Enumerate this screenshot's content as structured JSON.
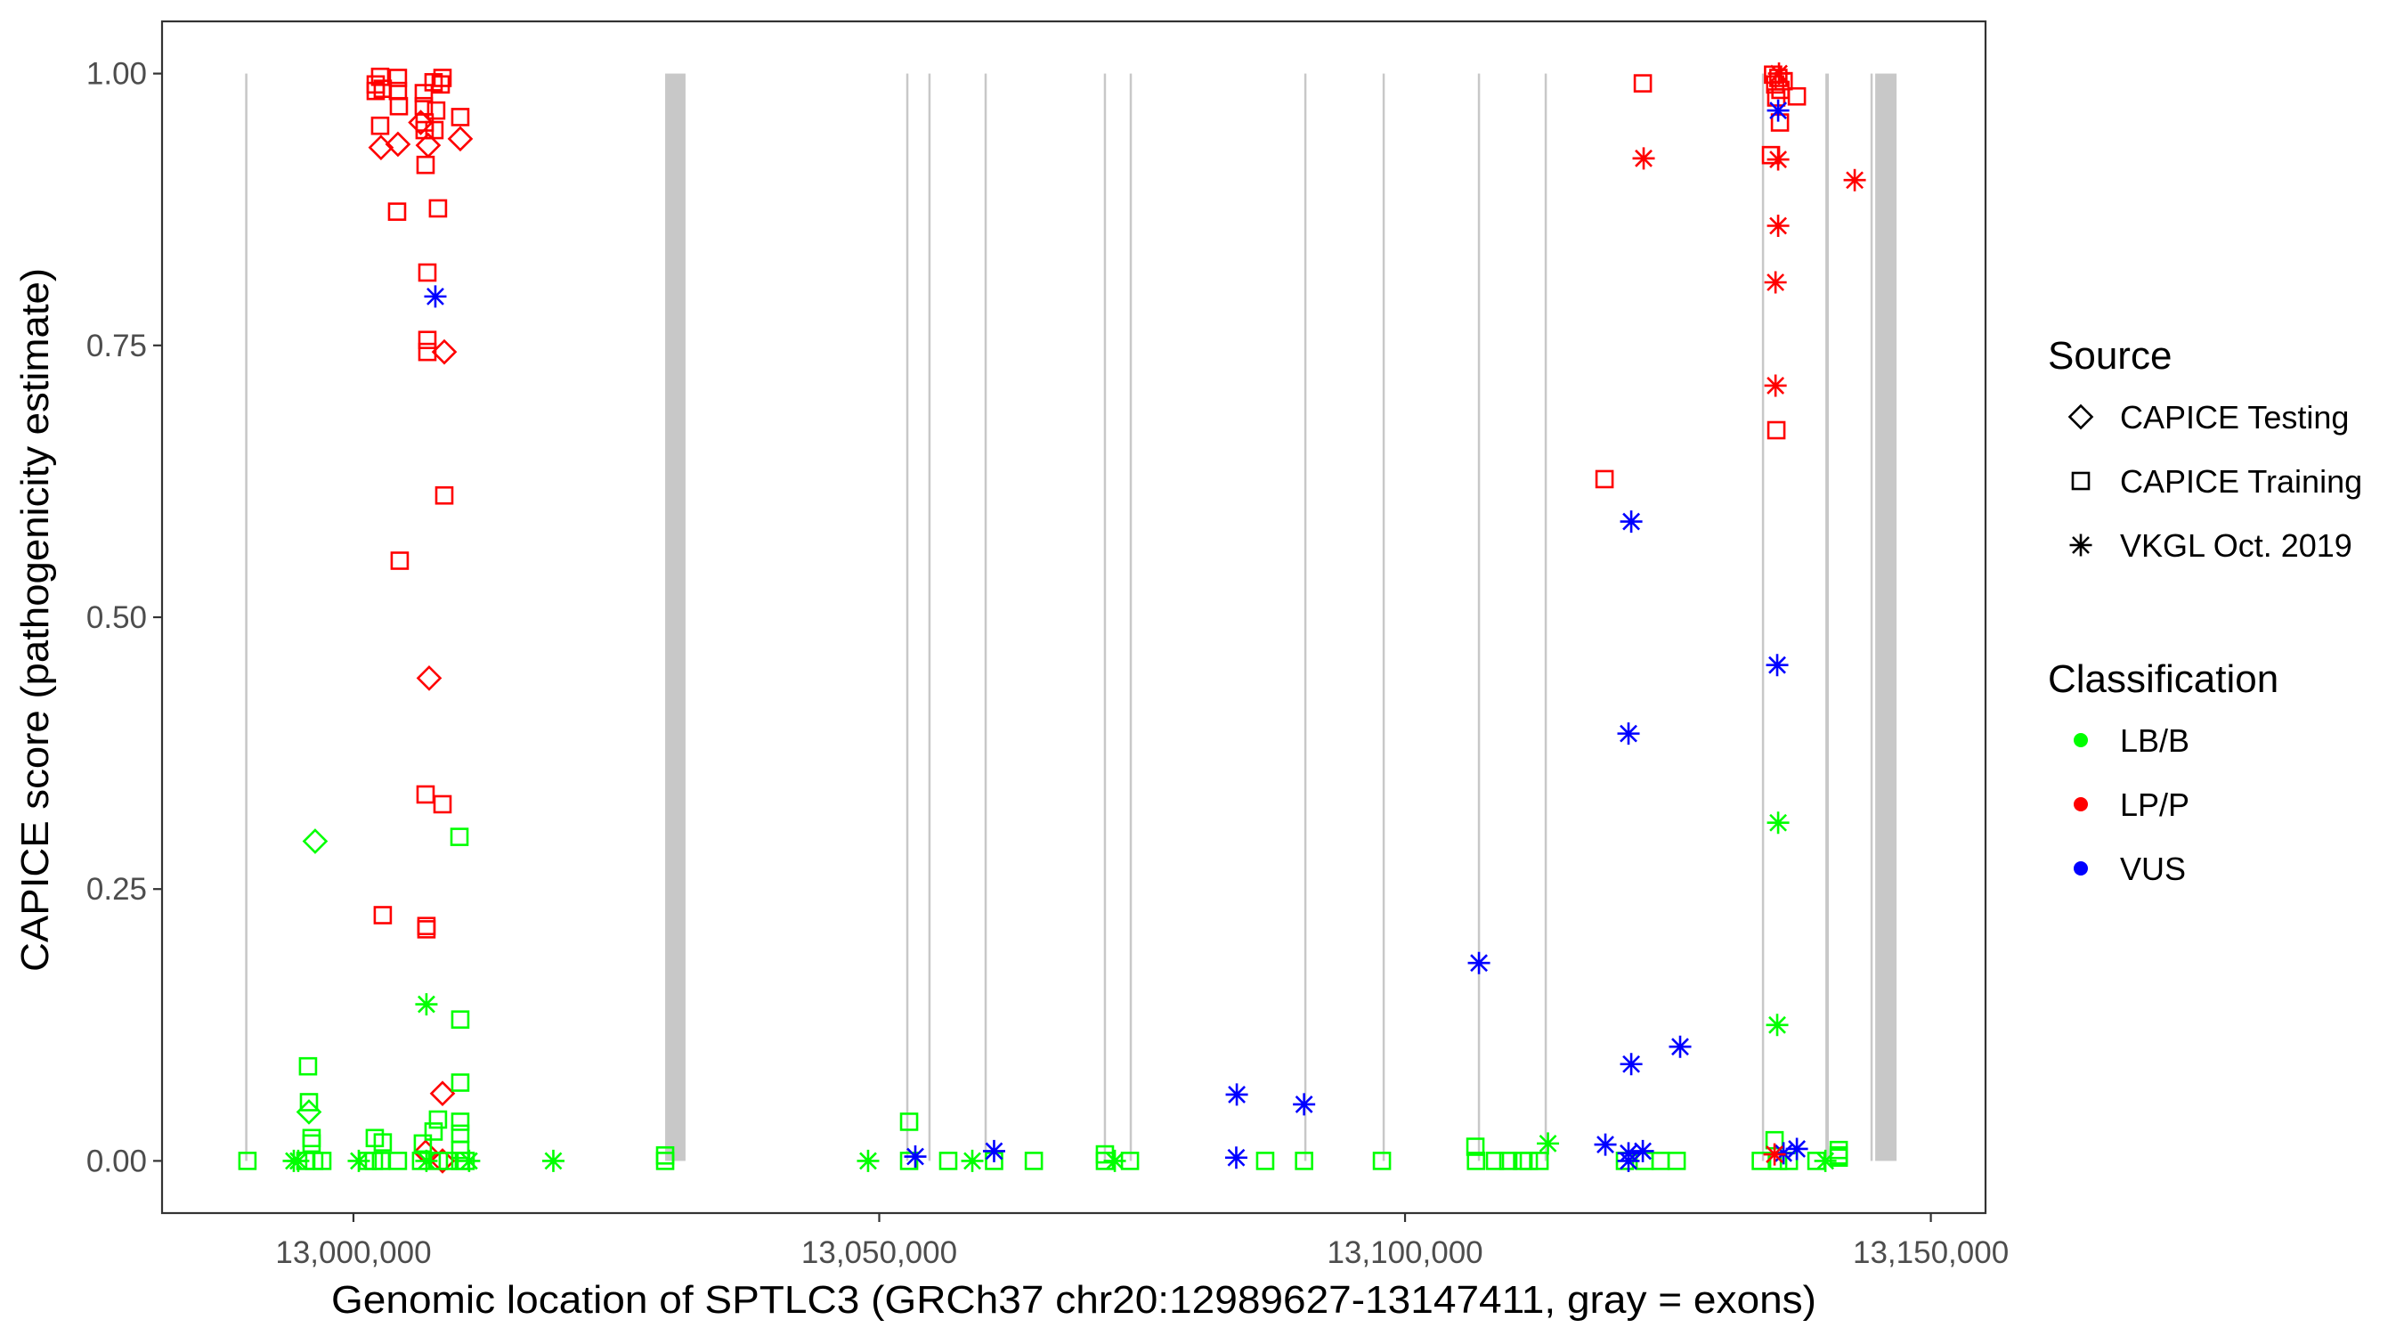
{
  "chart_data": {
    "type": "scatter",
    "xlabel": "Genomic location of SPTLC3 (GRCh37 chr20:12989627-13147411, gray = exons)",
    "ylabel": "CAPICE score (pathogenicity estimate)",
    "xlim": [
      12981800,
      13155200
    ],
    "ylim": [
      -0.048,
      1.048
    ],
    "x_ticks": [
      {
        "value": 13000000,
        "label": "13,000,000"
      },
      {
        "value": 13050000,
        "label": "13,050,000"
      },
      {
        "value": 13100000,
        "label": "13,100,000"
      },
      {
        "value": 13150000,
        "label": "13,150,000"
      }
    ],
    "y_ticks": [
      {
        "value": 0,
        "label": "0.00"
      },
      {
        "value": 0.25,
        "label": "0.25"
      },
      {
        "value": 0.5,
        "label": "0.50"
      },
      {
        "value": 0.75,
        "label": "0.75"
      },
      {
        "value": 1,
        "label": "1.00"
      }
    ],
    "grid": false,
    "exon_color": "#c8c8c8",
    "exons": [
      [
        12989700,
        12989920
      ],
      [
        13029640,
        13031580
      ],
      [
        13052570,
        13052770
      ],
      [
        13054680,
        13054880
      ],
      [
        13060020,
        13060220
      ],
      [
        13071360,
        13071560
      ],
      [
        13073820,
        13074020
      ],
      [
        13090420,
        13090620
      ],
      [
        13097870,
        13098070
      ],
      [
        13106930,
        13107130
      ],
      [
        13113280,
        13113480
      ],
      [
        13133940,
        13134140
      ],
      [
        13139970,
        13140300
      ],
      [
        13144280,
        13144450
      ],
      [
        13144710,
        13146740
      ]
    ],
    "legend": {
      "placement": "right",
      "source_title": "Source",
      "sources": [
        {
          "name": "CAPICE Testing",
          "shape": "diamond"
        },
        {
          "name": "CAPICE Training",
          "shape": "square"
        },
        {
          "name": "VKGL Oct. 2019",
          "shape": "asterisk"
        }
      ],
      "class_title": "Classification",
      "classes": [
        {
          "name": "LB/B",
          "color": "#00ff00"
        },
        {
          "name": "LP/P",
          "color": "#ff0000"
        },
        {
          "name": "VUS",
          "color": "#0000ff"
        }
      ]
    },
    "series": [
      {
        "source": "CAPICE Training",
        "classification": "LP/P",
        "points": [
          [
            13002540,
            0.997
          ],
          [
            13002120,
            0.99
          ],
          [
            13002120,
            0.984
          ],
          [
            13002790,
            0.986
          ],
          [
            13004230,
            0.996
          ],
          [
            13004230,
            0.984
          ],
          [
            13004320,
            0.97
          ],
          [
            13002540,
            0.952
          ],
          [
            13006690,
            0.982
          ],
          [
            13006690,
            0.97
          ],
          [
            13007620,
            0.992
          ],
          [
            13008470,
            0.996
          ],
          [
            13008300,
            0.99
          ],
          [
            13007870,
            0.966
          ],
          [
            13006770,
            0.955
          ],
          [
            13006770,
            0.948
          ],
          [
            13007700,
            0.948
          ],
          [
            13010160,
            0.96
          ],
          [
            13006860,
            0.916
          ],
          [
            13004150,
            0.873
          ],
          [
            13008040,
            0.876
          ],
          [
            13007030,
            0.817
          ],
          [
            13007030,
            0.755
          ],
          [
            13007030,
            0.744
          ],
          [
            13008640,
            0.612
          ],
          [
            13004400,
            0.552
          ],
          [
            13006860,
            0.337
          ],
          [
            13008470,
            0.328
          ],
          [
            13002790,
            0.226
          ],
          [
            13006940,
            0.216
          ],
          [
            13006940,
            0.213
          ],
          [
            13122610,
            0.991
          ],
          [
            13118970,
            0.627
          ],
          [
            13135000,
            0.999
          ],
          [
            13135500,
            0.996
          ],
          [
            13136000,
            0.993
          ],
          [
            13135200,
            0.99
          ],
          [
            13135700,
            0.985
          ],
          [
            13135300,
            0.978
          ],
          [
            13137260,
            0.979
          ],
          [
            13135650,
            0.955
          ],
          [
            13134800,
            0.925
          ],
          [
            13135310,
            0.672
          ]
        ]
      },
      {
        "source": "CAPICE Testing",
        "classification": "LP/P",
        "points": [
          [
            13002620,
            0.932
          ],
          [
            13004230,
            0.935
          ],
          [
            13007110,
            0.934
          ],
          [
            13010160,
            0.94
          ],
          [
            13006400,
            0.955
          ],
          [
            13008640,
            0.744
          ],
          [
            13007200,
            0.444
          ],
          [
            13008470,
            0.062
          ],
          [
            13006860,
            0.008
          ],
          [
            13008470,
            0.0
          ]
        ]
      },
      {
        "source": "CAPICE Training",
        "classification": "LB/B",
        "points": [
          [
            12989920,
            0
          ],
          [
            12996020,
            0.021
          ],
          [
            12996020,
            0.016
          ],
          [
            12995680,
            0.087
          ],
          [
            12995770,
            0.054
          ],
          [
            13010080,
            0.298
          ],
          [
            13010160,
            0.13
          ],
          [
            13010160,
            0.072
          ],
          [
            13008040,
            0.038
          ],
          [
            13010160,
            0.036
          ],
          [
            13010160,
            0.025
          ],
          [
            13007620,
            0.027
          ],
          [
            13002030,
            0.021
          ],
          [
            13002790,
            0.017
          ],
          [
            13006600,
            0.016
          ],
          [
            13010160,
            0.01
          ],
          [
            12995430,
            0
          ],
          [
            12996270,
            0
          ],
          [
            12997040,
            0
          ],
          [
            13001350,
            0
          ],
          [
            13001950,
            0
          ],
          [
            13002620,
            0
          ],
          [
            13004230,
            0
          ],
          [
            13006430,
            0
          ],
          [
            13008130,
            0
          ],
          [
            13008970,
            0
          ],
          [
            13010160,
            0
          ],
          [
            13010670,
            0
          ],
          [
            13029640,
            0.005
          ],
          [
            13029640,
            0
          ],
          [
            13052840,
            0.036
          ],
          [
            13052840,
            0
          ],
          [
            13056560,
            0
          ],
          [
            13060920,
            0
          ],
          [
            13064700,
            0
          ],
          [
            13071460,
            0.006
          ],
          [
            13071460,
            0
          ],
          [
            13073840,
            0
          ],
          [
            13086700,
            0
          ],
          [
            13090400,
            0
          ],
          [
            13097800,
            0
          ],
          [
            13106690,
            0.013
          ],
          [
            13106750,
            0
          ],
          [
            13108550,
            0
          ],
          [
            13109820,
            0
          ],
          [
            13111140,
            0
          ],
          [
            13111770,
            0
          ],
          [
            13112790,
            0
          ],
          [
            13120910,
            0
          ],
          [
            13122780,
            0
          ],
          [
            13124300,
            0
          ],
          [
            13125830,
            0
          ],
          [
            13135140,
            0.019
          ],
          [
            13133830,
            0
          ],
          [
            13135480,
            0
          ],
          [
            13136500,
            0
          ],
          [
            13139120,
            0
          ],
          [
            13141240,
            0.003
          ],
          [
            13141240,
            0.01
          ],
          [
            13141240,
            0.005
          ]
        ]
      },
      {
        "source": "CAPICE Testing",
        "classification": "LB/B",
        "points": [
          [
            12996360,
            0.294
          ],
          [
            12995770,
            0.045
          ]
        ]
      },
      {
        "source": "VKGL Oct. 2019",
        "classification": "LB/B",
        "points": [
          [
            12994330,
            0
          ],
          [
            12994750,
            0
          ],
          [
            13000510,
            0
          ],
          [
            13006940,
            0.144
          ],
          [
            13006940,
            0
          ],
          [
            13011000,
            0
          ],
          [
            13019010,
            0
          ],
          [
            13048940,
            0
          ],
          [
            13058850,
            0
          ],
          [
            13072400,
            0
          ],
          [
            13113590,
            0.016
          ],
          [
            13135480,
            0.311
          ],
          [
            13135390,
            0.125
          ],
          [
            13139970,
            0
          ]
        ]
      },
      {
        "source": "VKGL Oct. 2019",
        "classification": "VUS",
        "points": [
          [
            13007790,
            0.795
          ],
          [
            13053430,
            0.004
          ],
          [
            13060920,
            0.009
          ],
          [
            13084000,
            0.061
          ],
          [
            13083950,
            0.003
          ],
          [
            13090400,
            0.052
          ],
          [
            13107030,
            0.182
          ],
          [
            13121510,
            0.588
          ],
          [
            13121250,
            0.393
          ],
          [
            13121510,
            0.089
          ],
          [
            13126160,
            0.105
          ],
          [
            13119050,
            0.015
          ],
          [
            13121250,
            0.007
          ],
          [
            13122610,
            0.009
          ],
          [
            13121250,
            0.0
          ],
          [
            13135480,
            0.966
          ],
          [
            13135390,
            0.456
          ],
          [
            13135990,
            0.007
          ],
          [
            13137260,
            0.011
          ]
        ]
      },
      {
        "source": "VKGL Oct. 2019",
        "classification": "LP/P",
        "points": [
          [
            13122690,
            0.922
          ],
          [
            13135560,
            1.0
          ],
          [
            13135480,
            0.921
          ],
          [
            13142760,
            0.902
          ],
          [
            13135480,
            0.86
          ],
          [
            13135230,
            0.808
          ],
          [
            13135230,
            0.713
          ],
          [
            13135140,
            0.006
          ]
        ]
      }
    ]
  }
}
